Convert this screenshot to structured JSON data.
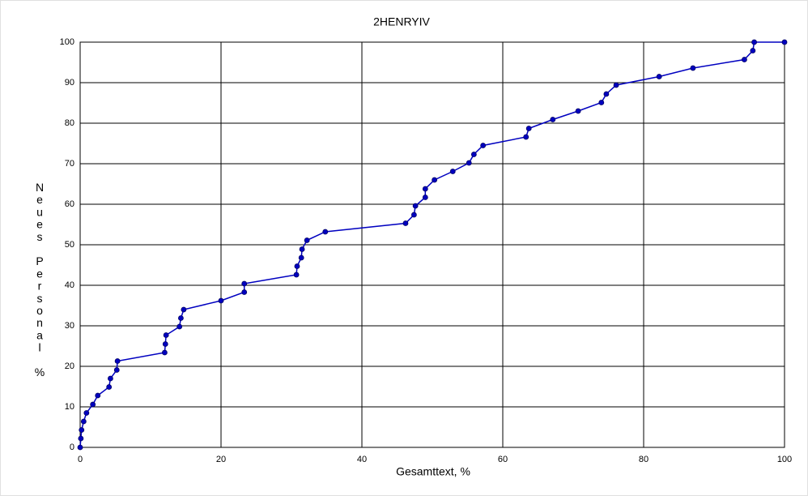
{
  "chart_data": {
    "type": "line",
    "title": "2HENRYIV",
    "xlabel": "Gesamttext, %",
    "ylabel": "Neues Personal %",
    "x": [
      0,
      0.1,
      0.2,
      0.5,
      0.9,
      1.8,
      2.5,
      4.1,
      4.3,
      5.2,
      5.3,
      12.0,
      12.1,
      12.2,
      14.1,
      14.3,
      14.7,
      20.0,
      23.3,
      23.3,
      30.7,
      30.8,
      31.4,
      31.5,
      32.2,
      34.8,
      46.2,
      47.4,
      47.6,
      49.0,
      49.0,
      50.3,
      52.9,
      55.2,
      55.9,
      57.2,
      63.3,
      63.7,
      67.1,
      70.7,
      74.0,
      74.7,
      76.1,
      82.2,
      87.0,
      94.3,
      95.5,
      95.7,
      100
    ],
    "series": [
      {
        "color": "#0000c0",
        "values": [
          0,
          2.2,
          4.3,
          6.4,
          8.5,
          10.6,
          12.8,
          14.9,
          17.0,
          19.1,
          21.3,
          23.4,
          25.5,
          27.7,
          29.8,
          31.9,
          34.0,
          36.2,
          38.3,
          40.4,
          42.6,
          44.7,
          46.8,
          48.9,
          51.1,
          53.2,
          55.3,
          57.4,
          59.6,
          61.7,
          63.8,
          66.0,
          68.1,
          70.2,
          72.3,
          74.5,
          76.6,
          78.7,
          80.9,
          83.0,
          85.1,
          87.2,
          89.4,
          91.5,
          93.6,
          95.7,
          97.9,
          100,
          100
        ]
      }
    ],
    "xlim": [
      0,
      100
    ],
    "xticks": [
      0,
      20,
      40,
      60,
      80,
      100
    ],
    "ylim": [
      0,
      100
    ],
    "yticks": [
      0,
      10,
      20,
      30,
      40,
      50,
      60,
      70,
      80,
      90,
      100
    ],
    "grid": true
  }
}
